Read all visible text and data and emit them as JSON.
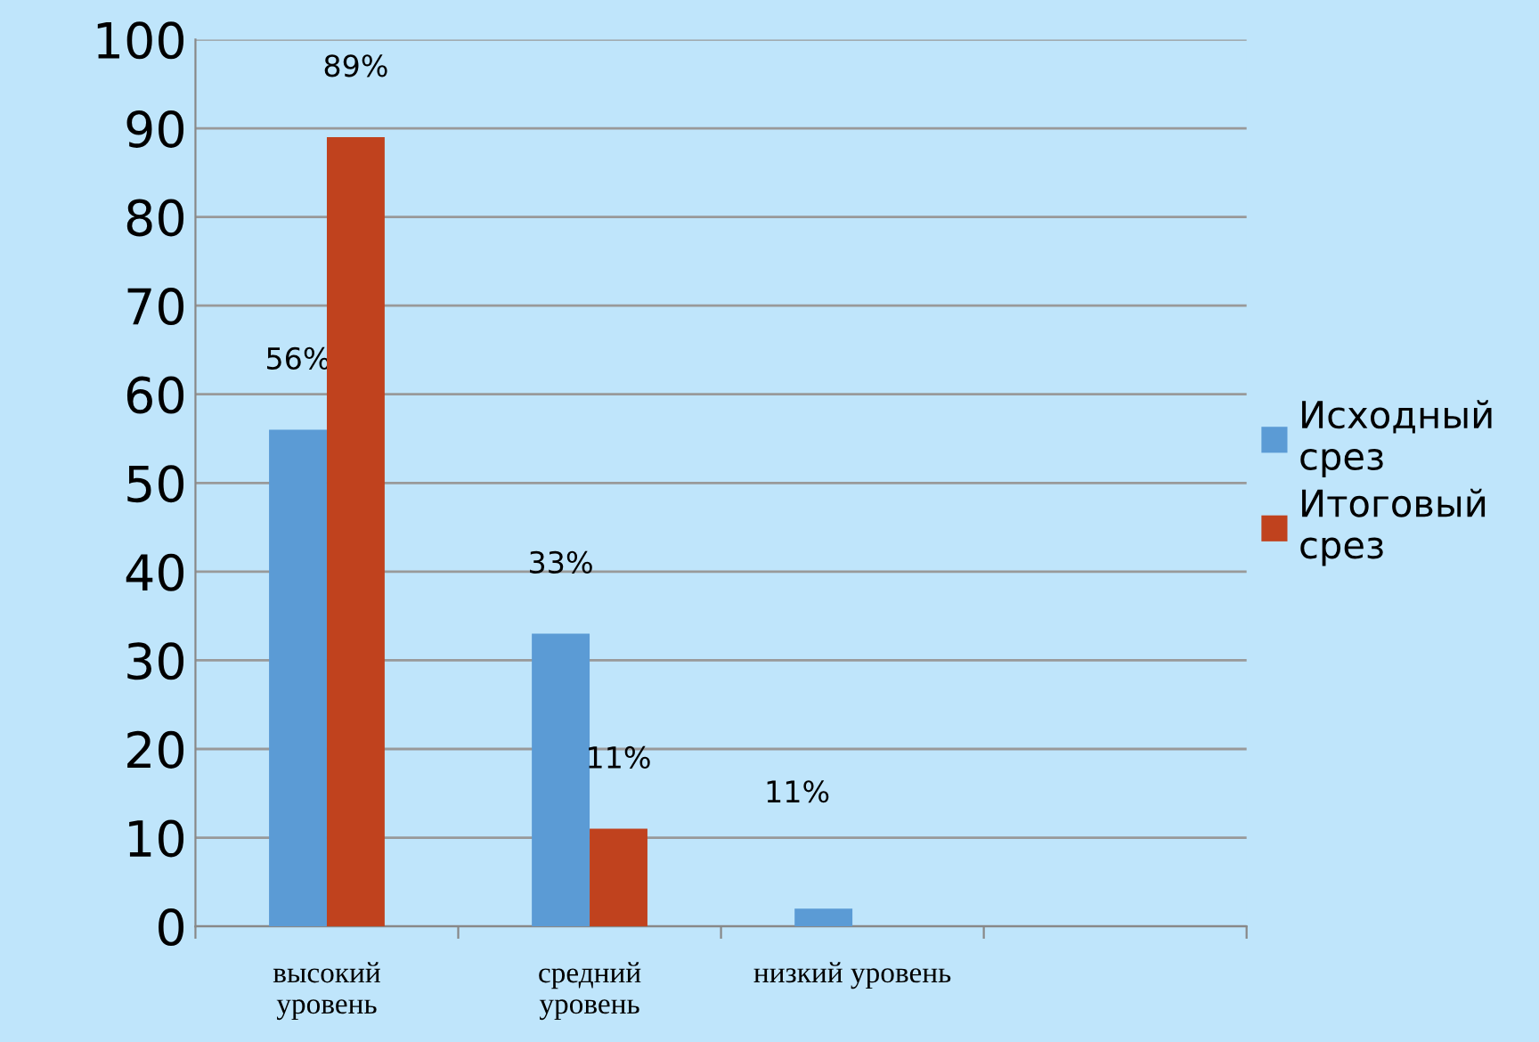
{
  "chart_data": {
    "type": "bar",
    "categories": [
      "высокий уровень",
      "средний уровень",
      "низкий уровень",
      null
    ],
    "series": [
      {
        "name": "Исходный\nсрез",
        "color": "#5b9bd5",
        "values": [
          56,
          33,
          2,
          null
        ],
        "value_labels": [
          "56%",
          "33%",
          null,
          null
        ]
      },
      {
        "name": "Итоговый\nсрез",
        "color": "#c0421e",
        "values": [
          89,
          11,
          null,
          null
        ],
        "value_labels": [
          "89%",
          "11%",
          null,
          null
        ]
      }
    ],
    "annotations": [
      "11%"
    ],
    "ylim": [
      0,
      100
    ],
    "yticks": [
      0,
      10,
      20,
      30,
      40,
      50,
      60,
      70,
      80,
      90,
      100
    ],
    "grid": "y",
    "legend": "right"
  }
}
